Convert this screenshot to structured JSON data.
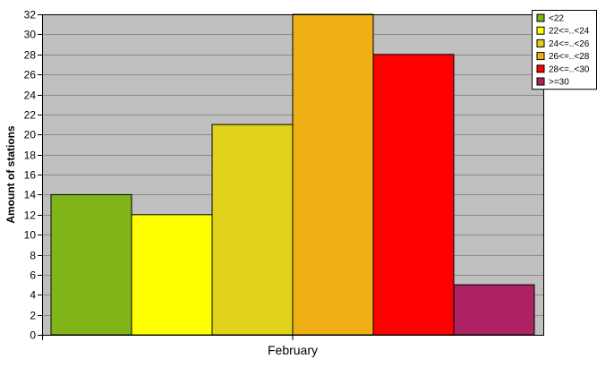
{
  "chart_data": {
    "type": "bar",
    "title": "",
    "xlabel": "",
    "ylabel": "Amount of stations",
    "categories": [
      "February"
    ],
    "ylim": [
      0,
      32
    ],
    "yticks": [
      0,
      2,
      4,
      6,
      8,
      10,
      12,
      14,
      16,
      18,
      20,
      22,
      24,
      26,
      28,
      30,
      32
    ],
    "grid": true,
    "legend_position": "top-right",
    "plot_background": "#c0c0c0",
    "series": [
      {
        "name": "<22",
        "values": [
          14
        ],
        "color": "#80b418"
      },
      {
        "name": "22<=..<24",
        "values": [
          12
        ],
        "color": "#ffff00"
      },
      {
        "name": "24<=..<26",
        "values": [
          21
        ],
        "color": "#e0d21a"
      },
      {
        "name": "26<=..<28",
        "values": [
          32
        ],
        "color": "#eeb015"
      },
      {
        "name": "28<=..<30",
        "values": [
          28
        ],
        "color": "#ff0000"
      },
      {
        "name": ">=30",
        "values": [
          5
        ],
        "color": "#ad2262"
      }
    ]
  }
}
